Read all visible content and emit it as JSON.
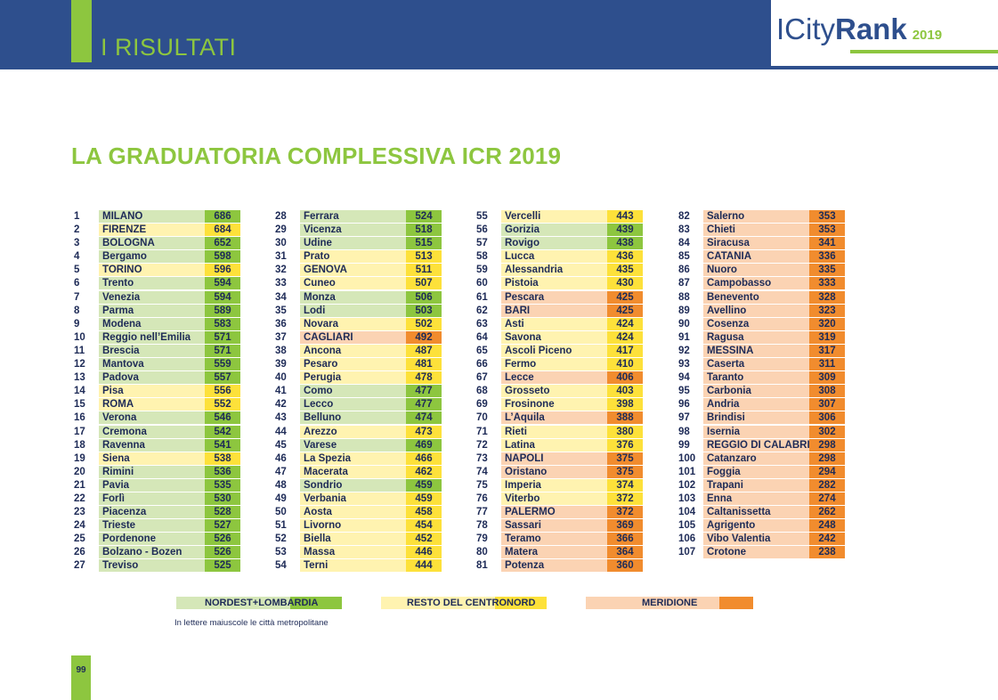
{
  "header": {
    "section_title": "I RISULTATI",
    "logo_pre": "ICity",
    "logo_post": "Rank",
    "logo_year": "2019"
  },
  "title": "LA GRADUATORIA COMPLESSIVA ICR 2019",
  "colors": {
    "nordest": {
      "light": "#d5e7b8",
      "dark": "#8dc63f"
    },
    "centro": {
      "light": "#fff3b0",
      "dark": "#fde13a"
    },
    "sud": {
      "light": "#fbd3b3",
      "dark": "#f18c2e"
    }
  },
  "columns": [
    [
      {
        "rank": "1",
        "name": "MILANO",
        "score": "686",
        "region": "nordest"
      },
      {
        "rank": "2",
        "name": "FIRENZE",
        "score": "684",
        "region": "centro"
      },
      {
        "rank": "3",
        "name": "BOLOGNA",
        "score": "652",
        "region": "nordest"
      },
      {
        "rank": "4",
        "name": "Bergamo",
        "score": "598",
        "region": "nordest"
      },
      {
        "rank": "5",
        "name": "TORINO",
        "score": "596",
        "region": "centro"
      },
      {
        "rank": "6",
        "name": "Trento",
        "score": "594",
        "region": "nordest"
      },
      {
        "rank": "7",
        "name": "Venezia",
        "score": "594",
        "region": "nordest"
      },
      {
        "rank": "8",
        "name": "Parma",
        "score": "589",
        "region": "nordest"
      },
      {
        "rank": "9",
        "name": "Modena",
        "score": "583",
        "region": "nordest"
      },
      {
        "rank": "10",
        "name": "Reggio nell’Emilia",
        "score": "571",
        "region": "nordest"
      },
      {
        "rank": "11",
        "name": "Brescia",
        "score": "571",
        "region": "nordest"
      },
      {
        "rank": "12",
        "name": "Mantova",
        "score": "559",
        "region": "nordest"
      },
      {
        "rank": "13",
        "name": "Padova",
        "score": "557",
        "region": "nordest"
      },
      {
        "rank": "14",
        "name": "Pisa",
        "score": "556",
        "region": "centro"
      },
      {
        "rank": "15",
        "name": "ROMA",
        "score": "552",
        "region": "centro"
      },
      {
        "rank": "16",
        "name": "Verona",
        "score": "546",
        "region": "nordest"
      },
      {
        "rank": "17",
        "name": "Cremona",
        "score": "542",
        "region": "nordest"
      },
      {
        "rank": "18",
        "name": "Ravenna",
        "score": "541",
        "region": "nordest"
      },
      {
        "rank": "19",
        "name": "Siena",
        "score": "538",
        "region": "centro"
      },
      {
        "rank": "20",
        "name": "Rimini",
        "score": "536",
        "region": "nordest"
      },
      {
        "rank": "21",
        "name": "Pavia",
        "score": "535",
        "region": "nordest"
      },
      {
        "rank": "22",
        "name": "Forlì",
        "score": "530",
        "region": "nordest"
      },
      {
        "rank": "23",
        "name": "Piacenza",
        "score": "528",
        "region": "nordest"
      },
      {
        "rank": "24",
        "name": "Trieste",
        "score": "527",
        "region": "nordest"
      },
      {
        "rank": "25",
        "name": "Pordenone",
        "score": "526",
        "region": "nordest"
      },
      {
        "rank": "26",
        "name": "Bolzano - Bozen",
        "score": "526",
        "region": "nordest"
      },
      {
        "rank": "27",
        "name": "Treviso",
        "score": "525",
        "region": "nordest"
      }
    ],
    [
      {
        "rank": "28",
        "name": "Ferrara",
        "score": "524",
        "region": "nordest"
      },
      {
        "rank": "29",
        "name": "Vicenza",
        "score": "518",
        "region": "nordest"
      },
      {
        "rank": "30",
        "name": "Udine",
        "score": "515",
        "region": "nordest"
      },
      {
        "rank": "31",
        "name": "Prato",
        "score": "513",
        "region": "centro"
      },
      {
        "rank": "32",
        "name": "GENOVA",
        "score": "511",
        "region": "centro"
      },
      {
        "rank": "33",
        "name": "Cuneo",
        "score": "507",
        "region": "centro"
      },
      {
        "rank": "34",
        "name": "Monza",
        "score": "506",
        "region": "nordest"
      },
      {
        "rank": "35",
        "name": "Lodi",
        "score": "503",
        "region": "nordest"
      },
      {
        "rank": "36",
        "name": "Novara",
        "score": "502",
        "region": "centro"
      },
      {
        "rank": "37",
        "name": "CAGLIARI",
        "score": "492",
        "region": "sud"
      },
      {
        "rank": "38",
        "name": "Ancona",
        "score": "487",
        "region": "centro"
      },
      {
        "rank": "39",
        "name": "Pesaro",
        "score": "481",
        "region": "centro"
      },
      {
        "rank": "40",
        "name": "Perugia",
        "score": "478",
        "region": "centro"
      },
      {
        "rank": "41",
        "name": "Como",
        "score": "477",
        "region": "nordest"
      },
      {
        "rank": "42",
        "name": "Lecco",
        "score": "477",
        "region": "nordest"
      },
      {
        "rank": "43",
        "name": "Belluno",
        "score": "474",
        "region": "nordest"
      },
      {
        "rank": "44",
        "name": "Arezzo",
        "score": "473",
        "region": "centro"
      },
      {
        "rank": "45",
        "name": "Varese",
        "score": "469",
        "region": "nordest"
      },
      {
        "rank": "46",
        "name": "La Spezia",
        "score": "466",
        "region": "centro"
      },
      {
        "rank": "47",
        "name": "Macerata",
        "score": "462",
        "region": "centro"
      },
      {
        "rank": "48",
        "name": "Sondrio",
        "score": "459",
        "region": "nordest"
      },
      {
        "rank": "49",
        "name": "Verbania",
        "score": "459",
        "region": "centro"
      },
      {
        "rank": "50",
        "name": "Aosta",
        "score": "458",
        "region": "centro"
      },
      {
        "rank": "51",
        "name": "Livorno",
        "score": "454",
        "region": "centro"
      },
      {
        "rank": "52",
        "name": "Biella",
        "score": "452",
        "region": "centro"
      },
      {
        "rank": "53",
        "name": "Massa",
        "score": "446",
        "region": "centro"
      },
      {
        "rank": "54",
        "name": "Terni",
        "score": "444",
        "region": "centro"
      }
    ],
    [
      {
        "rank": "55",
        "name": "Vercelli",
        "score": "443",
        "region": "centro"
      },
      {
        "rank": "56",
        "name": "Gorizia",
        "score": "439",
        "region": "nordest"
      },
      {
        "rank": "57",
        "name": "Rovigo",
        "score": "438",
        "region": "nordest"
      },
      {
        "rank": "58",
        "name": "Lucca",
        "score": "436",
        "region": "centro"
      },
      {
        "rank": "59",
        "name": "Alessandria",
        "score": "435",
        "region": "centro"
      },
      {
        "rank": "60",
        "name": "Pistoia",
        "score": "430",
        "region": "centro"
      },
      {
        "rank": "61",
        "name": "Pescara",
        "score": "425",
        "region": "sud"
      },
      {
        "rank": "62",
        "name": "BARI",
        "score": "425",
        "region": "sud"
      },
      {
        "rank": "63",
        "name": "Asti",
        "score": "424",
        "region": "centro"
      },
      {
        "rank": "64",
        "name": "Savona",
        "score": "424",
        "region": "centro"
      },
      {
        "rank": "65",
        "name": "Ascoli Piceno",
        "score": "417",
        "region": "centro"
      },
      {
        "rank": "66",
        "name": "Fermo",
        "score": "410",
        "region": "centro"
      },
      {
        "rank": "67",
        "name": "Lecce",
        "score": "406",
        "region": "sud"
      },
      {
        "rank": "68",
        "name": "Grosseto",
        "score": "403",
        "region": "centro"
      },
      {
        "rank": "69",
        "name": "Frosinone",
        "score": "398",
        "region": "centro"
      },
      {
        "rank": "70",
        "name": "L’Aquila",
        "score": "388",
        "region": "sud"
      },
      {
        "rank": "71",
        "name": "Rieti",
        "score": "380",
        "region": "centro"
      },
      {
        "rank": "72",
        "name": "Latina",
        "score": "376",
        "region": "centro"
      },
      {
        "rank": "73",
        "name": "NAPOLI",
        "score": "375",
        "region": "sud"
      },
      {
        "rank": "74",
        "name": "Oristano",
        "score": "375",
        "region": "sud"
      },
      {
        "rank": "75",
        "name": "Imperia",
        "score": "374",
        "region": "centro"
      },
      {
        "rank": "76",
        "name": "Viterbo",
        "score": "372",
        "region": "centro"
      },
      {
        "rank": "77",
        "name": "PALERMO",
        "score": "372",
        "region": "sud"
      },
      {
        "rank": "78",
        "name": "Sassari",
        "score": "369",
        "region": "sud"
      },
      {
        "rank": "79",
        "name": "Teramo",
        "score": "366",
        "region": "sud"
      },
      {
        "rank": "80",
        "name": "Matera",
        "score": "364",
        "region": "sud"
      },
      {
        "rank": "81",
        "name": "Potenza",
        "score": "360",
        "region": "sud"
      }
    ],
    [
      {
        "rank": "82",
        "name": "Salerno",
        "score": "353",
        "region": "sud"
      },
      {
        "rank": "83",
        "name": "Chieti",
        "score": "353",
        "region": "sud"
      },
      {
        "rank": "84",
        "name": "Siracusa",
        "score": "341",
        "region": "sud"
      },
      {
        "rank": "85",
        "name": "CATANIA",
        "score": "336",
        "region": "sud"
      },
      {
        "rank": "86",
        "name": "Nuoro",
        "score": "335",
        "region": "sud"
      },
      {
        "rank": "87",
        "name": "Campobasso",
        "score": "333",
        "region": "sud"
      },
      {
        "rank": "88",
        "name": "Benevento",
        "score": "328",
        "region": "sud"
      },
      {
        "rank": "89",
        "name": "Avellino",
        "score": "323",
        "region": "sud"
      },
      {
        "rank": "90",
        "name": "Cosenza",
        "score": "320",
        "region": "sud"
      },
      {
        "rank": "91",
        "name": "Ragusa",
        "score": "319",
        "region": "sud"
      },
      {
        "rank": "92",
        "name": "MESSINA",
        "score": "317",
        "region": "sud"
      },
      {
        "rank": "93",
        "name": "Caserta",
        "score": "311",
        "region": "sud"
      },
      {
        "rank": "94",
        "name": "Taranto",
        "score": "309",
        "region": "sud"
      },
      {
        "rank": "95",
        "name": "Carbonia",
        "score": "308",
        "region": "sud"
      },
      {
        "rank": "96",
        "name": "Andria",
        "score": "307",
        "region": "sud"
      },
      {
        "rank": "97",
        "name": "Brindisi",
        "score": "306",
        "region": "sud"
      },
      {
        "rank": "98",
        "name": "Isernia",
        "score": "302",
        "region": "sud"
      },
      {
        "rank": "99",
        "name": "REGGIO DI CALABRIA",
        "score": "298",
        "region": "sud"
      },
      {
        "rank": "100",
        "name": "Catanzaro",
        "score": "298",
        "region": "sud"
      },
      {
        "rank": "101",
        "name": "Foggia",
        "score": "294",
        "region": "sud"
      },
      {
        "rank": "102",
        "name": "Trapani",
        "score": "282",
        "region": "sud"
      },
      {
        "rank": "103",
        "name": "Enna",
        "score": "274",
        "region": "sud"
      },
      {
        "rank": "104",
        "name": "Caltanissetta",
        "score": "262",
        "region": "sud"
      },
      {
        "rank": "105",
        "name": "Agrigento",
        "score": "248",
        "region": "sud"
      },
      {
        "rank": "106",
        "name": "Vibo Valentia",
        "score": "242",
        "region": "sud"
      },
      {
        "rank": "107",
        "name": "Crotone",
        "score": "238",
        "region": "sud"
      }
    ]
  ],
  "legend": [
    {
      "label": "NORDEST+LOMBARDIA",
      "region": "nordest"
    },
    {
      "label": "RESTO DEL CENTRONORD",
      "region": "centro"
    },
    {
      "label": "MERIDIONE",
      "region": "sud"
    }
  ],
  "note": "In lettere maiuscole le città metropolitane",
  "page_number": "99"
}
